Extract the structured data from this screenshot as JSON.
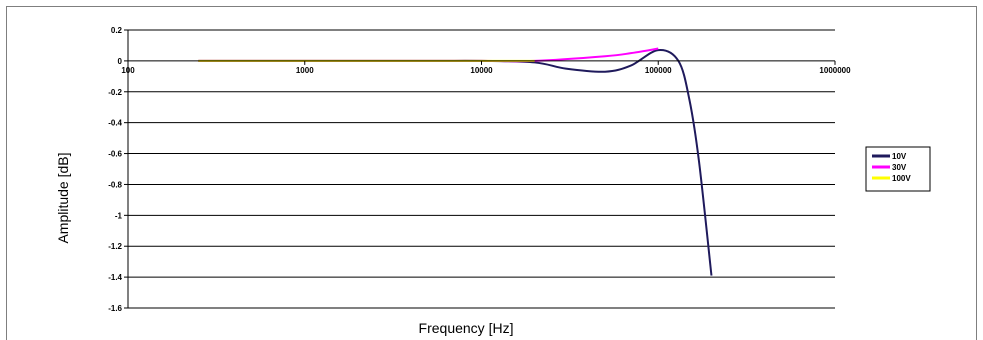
{
  "chart_data": {
    "type": "line",
    "xscale": "log",
    "xlabel": "Frequency [Hz]",
    "ylabel": "Amplitude [dB]",
    "xlim": [
      100,
      1000000
    ],
    "ylim": [
      -1.6,
      0.2
    ],
    "x_ticks": [
      100,
      1000,
      10000,
      100000,
      1000000
    ],
    "x_tick_labels": [
      "100",
      "1000",
      "10000",
      "100000",
      "1000000"
    ],
    "y_ticks": [
      0.2,
      0,
      -0.2,
      -0.4,
      -0.6,
      -0.8,
      -1,
      -1.2,
      -1.4,
      -1.6
    ],
    "y_tick_labels": [
      "0.2",
      "0",
      "-0.2",
      "-0.4",
      "-0.6",
      "-0.8",
      "-1",
      "-1.2",
      "-1.4",
      "-1.6"
    ],
    "grid": "horizontal",
    "legend_position": "right",
    "series": [
      {
        "name": "10V",
        "color": "#1f1a5c",
        "x": [
          250,
          1000,
          5000,
          10000,
          20000,
          30000,
          50000,
          70000,
          100000,
          130000,
          150000,
          170000,
          200000
        ],
        "y": [
          0,
          0,
          0,
          0,
          -0.01,
          -0.05,
          -0.07,
          -0.03,
          0.07,
          0.0,
          -0.25,
          -0.65,
          -1.39
        ]
      },
      {
        "name": "30V",
        "color": "#ff00ff",
        "x": [
          250,
          1000,
          5000,
          10000,
          20000,
          50000,
          70000,
          100000
        ],
        "y": [
          0,
          0,
          0,
          0,
          0.0,
          0.03,
          0.05,
          0.08
        ]
      },
      {
        "name": "100V",
        "color": "#ffff00",
        "x": [
          250,
          1000,
          5000,
          10000,
          20000
        ],
        "y": [
          0,
          0,
          0,
          0,
          0
        ]
      }
    ]
  }
}
